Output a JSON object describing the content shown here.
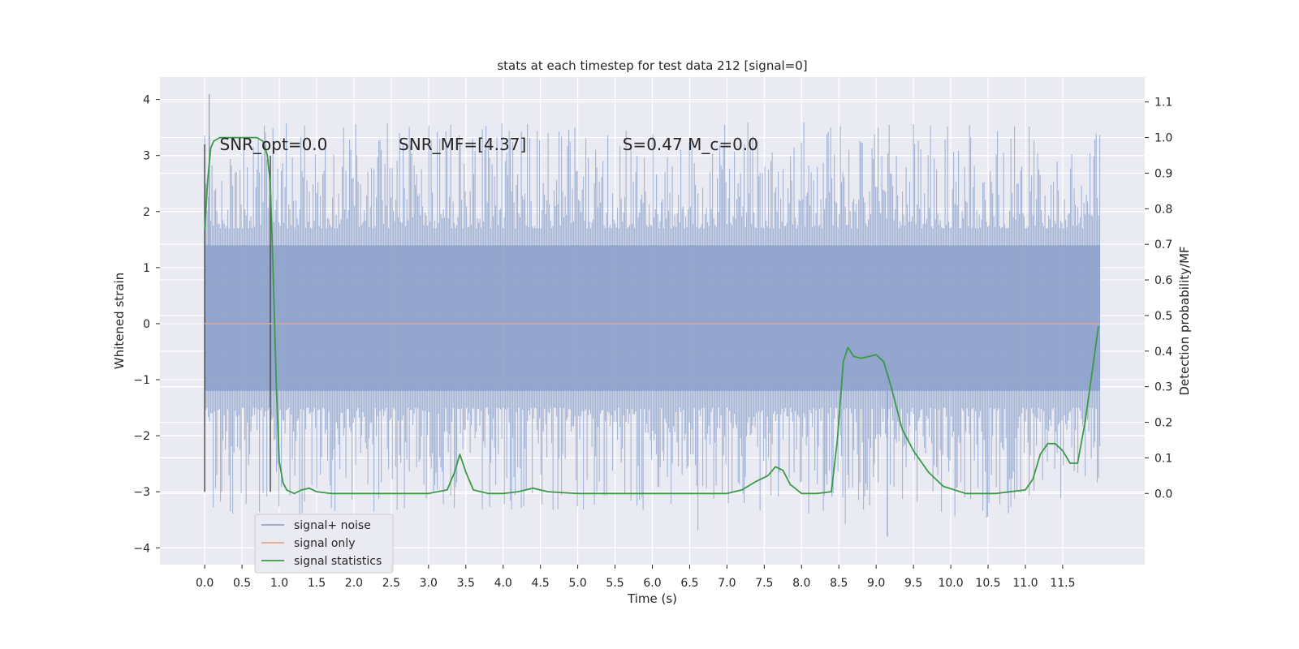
{
  "chart_data": {
    "type": "line",
    "title": "stats at each timestep for test data 212 [signal=0]",
    "xlabel": "Time (s)",
    "ylabel": "Whitened strain",
    "ylabel_right": "Detection probability/MF",
    "xlim": [
      -0.6,
      12.6
    ],
    "ylim": [
      -4.3,
      4.4
    ],
    "ylim_right": [
      -0.2,
      1.17
    ],
    "x_ticks": [
      0.0,
      0.5,
      1.0,
      1.5,
      2.0,
      2.5,
      3.0,
      3.5,
      4.0,
      4.5,
      5.0,
      5.5,
      6.0,
      6.5,
      7.0,
      7.5,
      8.0,
      8.5,
      9.0,
      9.5,
      10.0,
      10.5,
      11.0,
      11.5
    ],
    "x_tick_labels": [
      "0.0",
      "0.5",
      "1.0",
      "1.5",
      "2.0",
      "2.5",
      "3.0",
      "3.5",
      "4.0",
      "4.5",
      "5.0",
      "5.5",
      "6.0",
      "6.5",
      "7.0",
      "7.5",
      "8.0",
      "8.5",
      "9.0",
      "9.5",
      "10.0",
      "10.5",
      "11.0",
      "11.5"
    ],
    "y_ticks": [
      4,
      3,
      2,
      1,
      0,
      -1,
      -2,
      -3,
      -4
    ],
    "y_tick_labels": [
      "4",
      "3",
      "2",
      "1",
      "0",
      "−1",
      "−2",
      "−3",
      "−4"
    ],
    "y_right_ticks": [
      1.1,
      1.0,
      0.9,
      0.8,
      0.7,
      0.6,
      0.5,
      0.4,
      0.3,
      0.2,
      0.1,
      0.0
    ],
    "y_right_tick_labels": [
      "1.1",
      "1.0",
      "0.9",
      "0.8",
      "0.7",
      "0.6",
      "0.5",
      "0.4",
      "0.3",
      "0.2",
      "0.1",
      "0.0"
    ],
    "annotations": [
      {
        "text": "SNR_opt=0.0",
        "x": 0.2,
        "y": 3.2
      },
      {
        "text": "SNR_MF=[4.37]",
        "x": 2.6,
        "y": 3.2
      },
      {
        "text": "S=0.47   M_c=0.0",
        "x": 5.6,
        "y": 3.2
      }
    ],
    "legend": {
      "placement": "lower-left",
      "entries": [
        "signal+ noise",
        "signal only",
        "signal statistics"
      ]
    },
    "markers": [
      {
        "x": 0.0,
        "y_range": [
          -3.0,
          3.2
        ]
      },
      {
        "x": 0.88,
        "y_range": [
          -3.0,
          3.0
        ]
      }
    ],
    "series": [
      {
        "name": "signal+ noise",
        "axis": "left",
        "color": "#8fa3cc",
        "x_range": [
          0.0,
          12.0
        ],
        "band": [
          -1.2,
          1.4
        ],
        "peak_high": 4.1,
        "peak_low": -3.8
      },
      {
        "name": "signal only",
        "axis": "left",
        "color": "#e8a48a",
        "x": [
          0.0,
          12.0
        ],
        "y": [
          0.0,
          0.0
        ]
      },
      {
        "name": "signal statistics",
        "axis": "right",
        "color": "#3a9a48",
        "x": [
          0.0,
          0.04,
          0.08,
          0.12,
          0.2,
          0.3,
          0.4,
          0.5,
          0.6,
          0.7,
          0.78,
          0.84,
          0.88,
          0.92,
          0.96,
          1.0,
          1.05,
          1.1,
          1.2,
          1.3,
          1.4,
          1.5,
          1.7,
          2.0,
          2.5,
          3.0,
          3.25,
          3.35,
          3.42,
          3.5,
          3.6,
          3.8,
          4.0,
          4.2,
          4.4,
          4.6,
          5.0,
          5.5,
          6.0,
          6.5,
          7.0,
          7.2,
          7.4,
          7.55,
          7.65,
          7.75,
          7.85,
          8.0,
          8.2,
          8.4,
          8.48,
          8.56,
          8.62,
          8.7,
          8.8,
          9.0,
          9.1,
          9.2,
          9.35,
          9.5,
          9.7,
          9.9,
          10.2,
          10.6,
          11.0,
          11.1,
          11.2,
          11.3,
          11.4,
          11.5,
          11.6,
          11.7,
          11.8,
          11.9,
          11.98
        ],
        "y": [
          0.74,
          0.88,
          0.97,
          0.99,
          1.0,
          1.0,
          1.0,
          1.0,
          1.0,
          1.0,
          0.99,
          0.95,
          0.87,
          0.6,
          0.3,
          0.09,
          0.03,
          0.01,
          0.0,
          0.01,
          0.015,
          0.005,
          0.0,
          0.0,
          0.0,
          0.0,
          0.01,
          0.06,
          0.11,
          0.06,
          0.01,
          0.0,
          0.0,
          0.005,
          0.015,
          0.005,
          0.0,
          0.0,
          0.0,
          0.0,
          0.0,
          0.01,
          0.035,
          0.05,
          0.075,
          0.065,
          0.025,
          0.0,
          0.0,
          0.005,
          0.15,
          0.37,
          0.41,
          0.385,
          0.38,
          0.39,
          0.37,
          0.3,
          0.18,
          0.12,
          0.06,
          0.02,
          0.0,
          0.0,
          0.01,
          0.04,
          0.11,
          0.14,
          0.14,
          0.12,
          0.085,
          0.085,
          0.2,
          0.35,
          0.47
        ]
      }
    ]
  }
}
